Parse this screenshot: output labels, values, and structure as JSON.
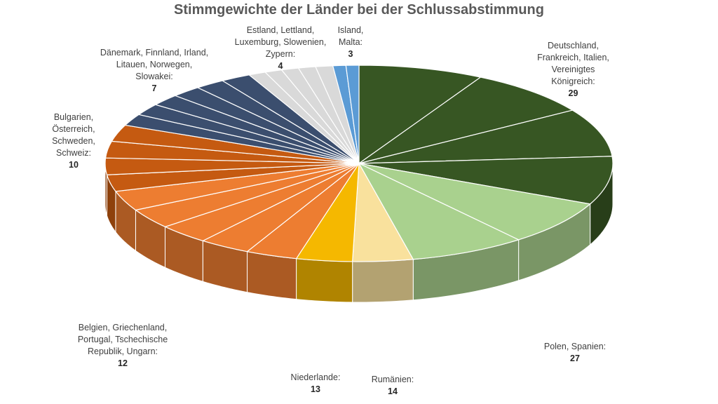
{
  "chart_data": {
    "type": "pie",
    "title": "Stimmgewichte der Länder bei der Schlussabstimmung",
    "slices": [
      {
        "label": "Deutschland, Frankreich, Italien, Vereinigtes Königreich:",
        "value": 29,
        "count": 4,
        "color": "#375623"
      },
      {
        "label": "Polen, Spanien:",
        "value": 27,
        "count": 2,
        "color": "#a9d18e"
      },
      {
        "label": "Rumänien:",
        "value": 14,
        "count": 1,
        "color": "#f9e19d"
      },
      {
        "label": "Niederlande:",
        "value": 13,
        "count": 1,
        "color": "#f5b800"
      },
      {
        "label": "Belgien, Griechenland, Portugal, Tschechische Republik, Ungarn:",
        "value": 12,
        "count": 5,
        "color": "#ed7d31"
      },
      {
        "label": "Bulgarien, Österreich, Schweden, Schweiz:",
        "value": 10,
        "count": 4,
        "color": "#c55a11"
      },
      {
        "label": "Dänemark, Finnland, Irland, Litauen, Norwegen, Slowakei:",
        "value": 7,
        "count": 6,
        "color": "#3b4e6e"
      },
      {
        "label": "Estland, Lettland, Luxemburg, Slowenien, Zypern:",
        "value": 4,
        "count": 5,
        "color": "#d9d9d9"
      },
      {
        "label": "Island, Malta:",
        "value": 3,
        "count": 2,
        "color": "#5b9bd5"
      }
    ]
  },
  "labels": [
    {
      "lines": [
        "Deutschland,",
        "Frankreich, Italien,",
        "Vereinigtes",
        "Königreich:"
      ],
      "value": "29"
    },
    {
      "lines": [
        "Polen, Spanien:"
      ],
      "value": "27"
    },
    {
      "lines": [
        "Rumänien:"
      ],
      "value": "14"
    },
    {
      "lines": [
        "Niederlande:"
      ],
      "value": "13"
    },
    {
      "lines": [
        "Belgien, Griechenland,",
        "Portugal, Tschechische",
        "Republik, Ungarn:"
      ],
      "value": "12"
    },
    {
      "lines": [
        "Bulgarien,",
        "Österreich,",
        "Schweden,",
        "Schweiz:"
      ],
      "value": "10"
    },
    {
      "lines": [
        "Dänemark, Finnland, Irland,",
        "Litauen, Norwegen,",
        "Slowakei:"
      ],
      "value": "7"
    },
    {
      "lines": [
        "Estland, Lettland,",
        "Luxemburg, Slowenien,",
        "Zypern:"
      ],
      "value": "4"
    },
    {
      "lines": [
        "Island,",
        "Malta:"
      ],
      "value": "3"
    }
  ]
}
